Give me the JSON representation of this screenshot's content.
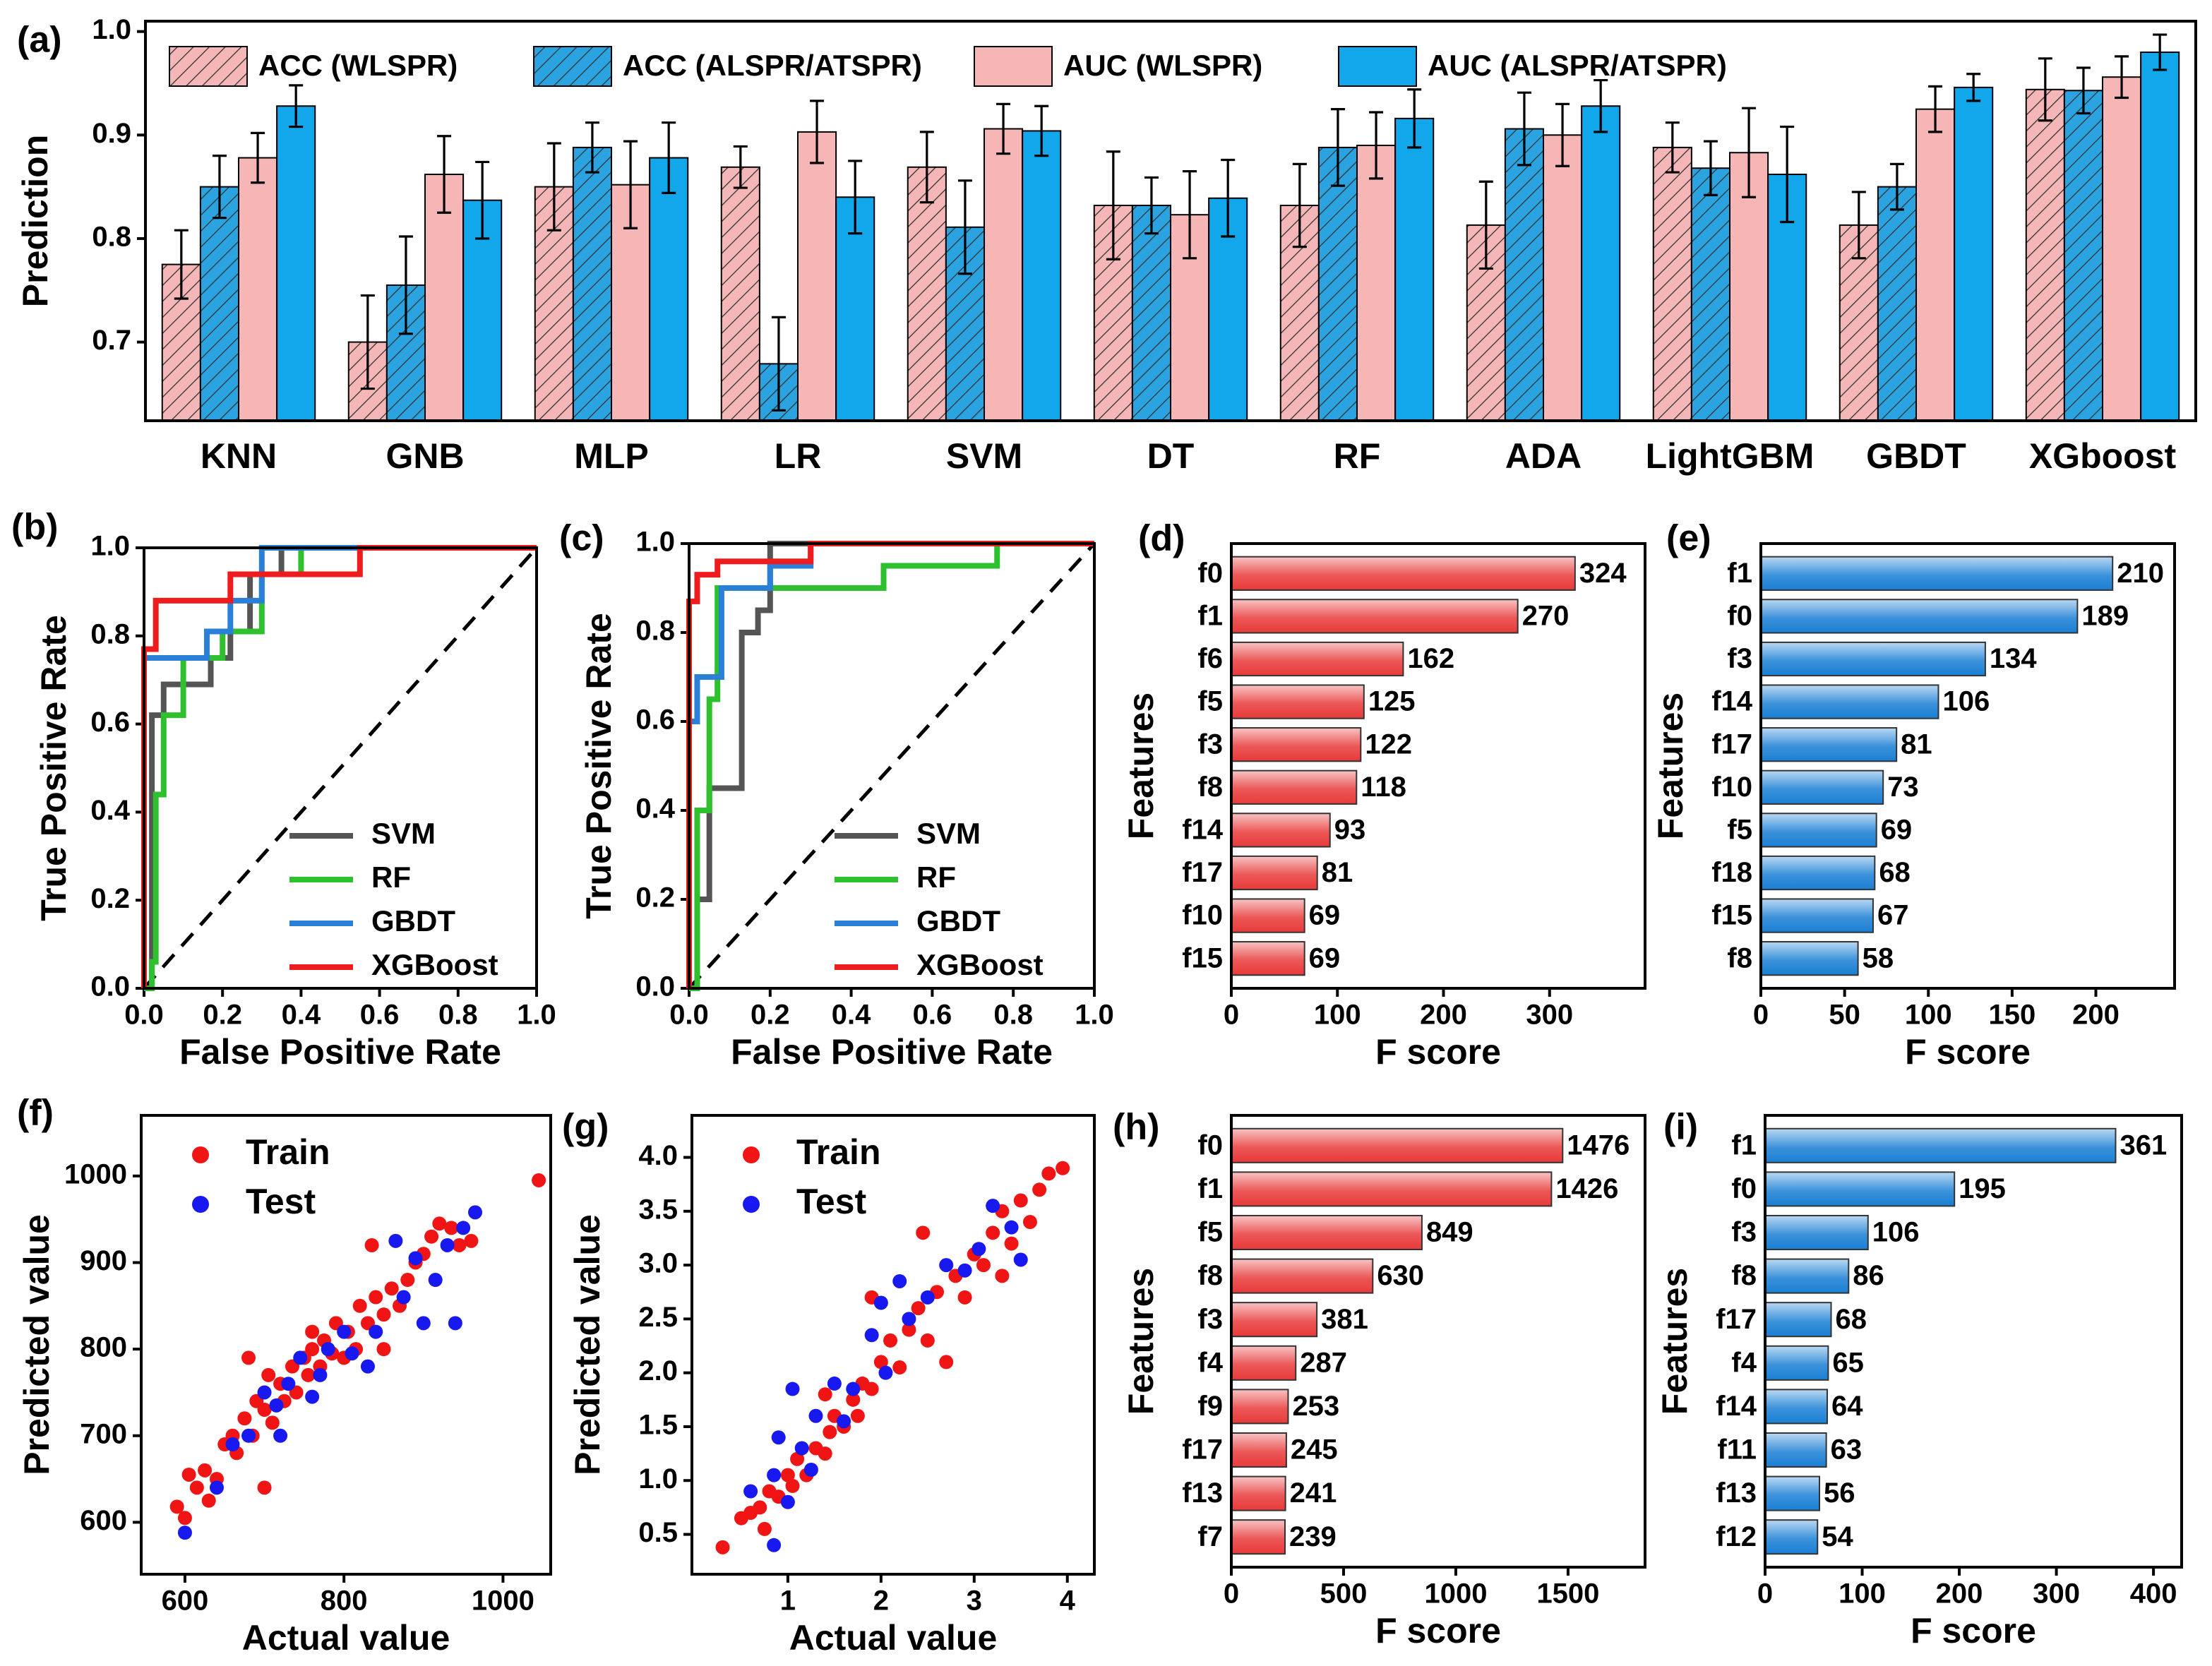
{
  "chart_data": [
    {
      "type": "bar",
      "label": "(a)",
      "ylabel": "Prediction",
      "categories": [
        "KNN",
        "GNB",
        "MLP",
        "LR",
        "SVM",
        "DT",
        "RF",
        "ADA",
        "LightGBM",
        "GBDT",
        "XGboost"
      ],
      "series": [
        {
          "name": "ACC (WLSPR)",
          "color": "#f4b6b6",
          "hatch": true,
          "values": [
            0.775,
            0.7,
            0.85,
            0.869,
            0.869,
            0.832,
            0.832,
            0.813,
            0.888,
            0.813,
            0.944
          ],
          "errors": [
            0.033,
            0.045,
            0.042,
            0.02,
            0.034,
            0.052,
            0.04,
            0.042,
            0.024,
            0.032,
            0.03
          ]
        },
        {
          "name": "ACC (ALSPR/ATSPR)",
          "color": "#2aa3e0",
          "hatch": true,
          "values": [
            0.85,
            0.755,
            0.888,
            0.679,
            0.811,
            0.832,
            0.888,
            0.906,
            0.868,
            0.85,
            0.943
          ],
          "errors": [
            0.03,
            0.047,
            0.024,
            0.045,
            0.045,
            0.027,
            0.037,
            0.035,
            0.026,
            0.022,
            0.022
          ]
        },
        {
          "name": "AUC (WLSPR)",
          "color": "#f7b6b6",
          "hatch": false,
          "values": [
            0.878,
            0.862,
            0.852,
            0.903,
            0.906,
            0.823,
            0.89,
            0.9,
            0.883,
            0.925,
            0.956
          ],
          "errors": [
            0.024,
            0.037,
            0.042,
            0.03,
            0.024,
            0.042,
            0.032,
            0.03,
            0.043,
            0.022,
            0.02
          ]
        },
        {
          "name": "AUC (ALSPR/ATSPR)",
          "color": "#12a6ea",
          "hatch": false,
          "values": [
            0.928,
            0.837,
            0.878,
            0.84,
            0.904,
            0.839,
            0.916,
            0.928,
            0.862,
            0.946,
            0.98
          ],
          "errors": [
            0.02,
            0.037,
            0.034,
            0.035,
            0.024,
            0.037,
            0.028,
            0.025,
            0.046,
            0.013,
            0.017
          ]
        }
      ],
      "ylim": [
        0.624,
        1.01
      ],
      "yticks": [
        0.7,
        0.8,
        0.9,
        {
          "value": 1,
          "label": "1.0"
        }
      ]
    },
    {
      "type": "line",
      "label": "(b)",
      "xlabel": "False Positive Rate",
      "ylabel": "True Positive Rate",
      "diagonal": true,
      "legend": "lower right",
      "xlim": [
        0,
        1
      ],
      "ylim": [
        0,
        1
      ],
      "xticks": [
        {
          "value": 0,
          "label": "0.0"
        },
        0.2,
        0.4,
        0.6,
        0.8,
        {
          "value": 1,
          "label": "1.0"
        }
      ],
      "yticks": [
        {
          "value": 0,
          "label": "0.0"
        },
        0.2,
        0.4,
        0.6,
        0.8,
        {
          "value": 1,
          "label": "1.0"
        }
      ],
      "series": [
        {
          "name": "SVM",
          "color": "#555555",
          "x": [
            0,
            0.02,
            0.02,
            0.05,
            0.05,
            0.17,
            0.17,
            0.22,
            0.22,
            0.27,
            0.27,
            0.35,
            0.35,
            1
          ],
          "values": [
            0,
            0,
            0.62,
            0.62,
            0.69,
            0.69,
            0.75,
            0.75,
            0.81,
            0.81,
            0.94,
            0.94,
            1,
            1
          ]
        },
        {
          "name": "RF",
          "color": "#2ec02e",
          "x": [
            0,
            0.02,
            0.02,
            0.03,
            0.03,
            0.05,
            0.05,
            0.1,
            0.1,
            0.2,
            0.2,
            0.3,
            0.3,
            0.4,
            0.4,
            1
          ],
          "values": [
            0,
            0,
            0.06,
            0.06,
            0.44,
            0.44,
            0.62,
            0.62,
            0.75,
            0.75,
            0.81,
            0.81,
            0.94,
            0.94,
            1,
            1
          ]
        },
        {
          "name": "GBDT",
          "color": "#2a7fd6",
          "x": [
            0,
            0,
            0.16,
            0.16,
            0.22,
            0.22,
            0.3,
            0.3,
            1
          ],
          "values": [
            0,
            0.75,
            0.75,
            0.81,
            0.81,
            0.88,
            0.88,
            1,
            1
          ]
        },
        {
          "name": "XGBoost",
          "color": "#ee1c1c",
          "x": [
            0,
            0,
            0.03,
            0.03,
            0.22,
            0.22,
            0.55,
            0.55,
            1
          ],
          "values": [
            0,
            0.77,
            0.77,
            0.88,
            0.88,
            0.94,
            0.94,
            1,
            1
          ]
        }
      ]
    },
    {
      "type": "line",
      "label": "(c)",
      "xlabel": "False Positive Rate",
      "ylabel": "True Positive Rate",
      "diagonal": true,
      "legend": "lower right",
      "xlim": [
        0,
        1
      ],
      "ylim": [
        0,
        1
      ],
      "xticks": [
        {
          "value": 0,
          "label": "0.0"
        },
        0.2,
        0.4,
        0.6,
        0.8,
        {
          "value": 1,
          "label": "1.0"
        }
      ],
      "yticks": [
        {
          "value": 0,
          "label": "0.0"
        },
        0.2,
        0.4,
        0.6,
        0.8,
        {
          "value": 1,
          "label": "1.0"
        }
      ],
      "series": [
        {
          "name": "SVM",
          "color": "#555555",
          "x": [
            0,
            0.02,
            0.02,
            0.05,
            0.05,
            0.13,
            0.13,
            0.17,
            0.17,
            0.2,
            0.2,
            1
          ],
          "values": [
            0,
            0,
            0.2,
            0.2,
            0.45,
            0.45,
            0.8,
            0.8,
            0.85,
            0.85,
            1,
            1
          ]
        },
        {
          "name": "RF",
          "color": "#2ec02e",
          "x": [
            0,
            0.02,
            0.02,
            0.05,
            0.05,
            0.07,
            0.07,
            0.48,
            0.48,
            0.76,
            0.76,
            1
          ],
          "values": [
            0,
            0,
            0.4,
            0.4,
            0.65,
            0.65,
            0.9,
            0.9,
            0.95,
            0.95,
            1,
            1
          ]
        },
        {
          "name": "GBDT",
          "color": "#2a7fd6",
          "x": [
            0,
            0.02,
            0.02,
            0.08,
            0.08,
            0.2,
            0.2,
            0.3,
            0.3,
            1
          ],
          "values": [
            0.6,
            0.6,
            0.7,
            0.7,
            0.9,
            0.9,
            0.95,
            0.95,
            1,
            1
          ]
        },
        {
          "name": "XGBoost",
          "color": "#ee1c1c",
          "x": [
            0,
            0,
            0.02,
            0.02,
            0.07,
            0.07,
            0.3,
            0.3,
            1
          ],
          "values": [
            0,
            0.87,
            0.87,
            0.93,
            0.93,
            0.96,
            0.96,
            1,
            1
          ]
        }
      ]
    },
    {
      "type": "hbar",
      "label": "(d)",
      "xlabel": "F score",
      "ylabel": "Features",
      "color": "#e83a3a",
      "categories": [
        "f0",
        "f1",
        "f6",
        "f5",
        "f3",
        "f8",
        "f14",
        "f17",
        "f10",
        "f15"
      ],
      "values": [
        324,
        270,
        162,
        125,
        122,
        118,
        93,
        81,
        69,
        69
      ],
      "xlim": [
        0,
        390
      ],
      "xticks": [
        0,
        100,
        200,
        300
      ]
    },
    {
      "type": "hbar",
      "label": "(e)",
      "xlabel": "F score",
      "ylabel": "Features",
      "color": "#1a7fd4",
      "categories": [
        "f1",
        "f0",
        "f3",
        "f14",
        "f17",
        "f10",
        "f5",
        "f18",
        "f15",
        "f8"
      ],
      "values": [
        210,
        189,
        134,
        106,
        81,
        73,
        69,
        68,
        67,
        58
      ],
      "xlim": [
        0,
        247
      ],
      "xticks": [
        0,
        50,
        100,
        150,
        200
      ]
    },
    {
      "type": "scatter",
      "label": "(f)",
      "xlabel": "Actual value",
      "ylabel": "Predicted value",
      "legend": "upper left",
      "xlim": [
        545,
        1060
      ],
      "ylim": [
        540,
        1070
      ],
      "xticks": [
        600,
        800,
        1000
      ],
      "yticks": [
        600,
        700,
        800,
        900,
        1000
      ],
      "series": [
        {
          "name": "Train",
          "color": "#f01414",
          "x": [
            590,
            600,
            605,
            615,
            625,
            630,
            640,
            650,
            660,
            665,
            675,
            680,
            685,
            690,
            700,
            705,
            710,
            720,
            725,
            735,
            740,
            750,
            755,
            760,
            770,
            775,
            785,
            790,
            800,
            805,
            815,
            820,
            830,
            835,
            840,
            850,
            860,
            870,
            880,
            890,
            900,
            910,
            920,
            935,
            945,
            960,
            1045,
            700,
            760,
            850
          ],
          "values": [
            618,
            605,
            655,
            640,
            660,
            625,
            650,
            690,
            700,
            680,
            720,
            790,
            700,
            740,
            730,
            770,
            715,
            760,
            740,
            780,
            750,
            790,
            770,
            800,
            780,
            810,
            795,
            830,
            790,
            820,
            800,
            850,
            830,
            920,
            860,
            840,
            870,
            850,
            880,
            900,
            910,
            930,
            945,
            940,
            920,
            925,
            995,
            640,
            820,
            800
          ]
        },
        {
          "name": "Test",
          "color": "#1818f0",
          "x": [
            600,
            640,
            660,
            680,
            700,
            715,
            730,
            745,
            760,
            780,
            800,
            830,
            840,
            865,
            875,
            890,
            900,
            915,
            930,
            940,
            950,
            965,
            720,
            770,
            810
          ],
          "values": [
            588,
            640,
            690,
            700,
            750,
            735,
            760,
            790,
            745,
            800,
            820,
            780,
            820,
            925,
            860,
            905,
            830,
            880,
            920,
            830,
            940,
            958,
            700,
            770,
            795
          ]
        }
      ]
    },
    {
      "type": "scatter",
      "label": "(g)",
      "xlabel": "Actual value",
      "ylabel": "Predicted value",
      "legend": "upper left",
      "xlim": [
        -0.03,
        4.29
      ],
      "ylim": [
        0.13,
        4.39
      ],
      "xticks": [
        1,
        2,
        3,
        4
      ],
      "yticks": [
        0.5,
        {
          "value": 1,
          "label": "1.0"
        },
        1.5,
        {
          "value": 2,
          "label": "2.0"
        },
        2.5,
        {
          "value": 3,
          "label": "3.0"
        },
        3.5,
        {
          "value": 4,
          "label": "4.0"
        }
      ],
      "series": [
        {
          "name": "Train",
          "color": "#f01414",
          "x": [
            0.3,
            0.5,
            0.6,
            0.7,
            0.75,
            0.8,
            0.9,
            1.0,
            1.05,
            1.1,
            1.2,
            1.3,
            1.4,
            1.45,
            1.5,
            1.6,
            1.7,
            1.75,
            1.8,
            1.9,
            2.0,
            2.1,
            2.2,
            2.3,
            2.4,
            2.5,
            2.6,
            2.7,
            2.8,
            2.9,
            3.0,
            3.1,
            3.2,
            3.3,
            3.4,
            3.5,
            3.6,
            3.7,
            3.8,
            3.95,
            2.45,
            1.4,
            3.3,
            1.9
          ],
          "values": [
            0.38,
            0.65,
            0.7,
            0.75,
            0.55,
            0.9,
            0.85,
            1.05,
            0.95,
            1.2,
            1.05,
            1.3,
            1.25,
            1.45,
            1.6,
            1.5,
            1.75,
            1.6,
            1.9,
            1.85,
            2.1,
            2.3,
            2.05,
            2.4,
            2.6,
            2.3,
            2.75,
            2.1,
            2.9,
            2.7,
            3.1,
            3.0,
            3.3,
            3.5,
            3.2,
            3.6,
            3.4,
            3.7,
            3.85,
            3.9,
            3.3,
            1.8,
            2.9,
            2.7
          ]
        },
        {
          "name": "Test",
          "color": "#1818f0",
          "x": [
            0.85,
            0.85,
            0.9,
            1.0,
            1.05,
            1.15,
            1.3,
            1.5,
            1.6,
            1.7,
            1.9,
            2.0,
            2.05,
            2.2,
            2.3,
            2.5,
            2.7,
            2.9,
            3.05,
            3.2,
            3.4,
            3.5,
            0.6,
            1.25
          ],
          "values": [
            0.4,
            1.05,
            1.4,
            0.8,
            1.85,
            1.3,
            1.6,
            1.9,
            1.55,
            1.85,
            2.35,
            2.65,
            2.0,
            2.85,
            2.5,
            2.7,
            3.0,
            2.95,
            3.15,
            3.55,
            3.35,
            3.05,
            0.9,
            1.1
          ]
        }
      ]
    },
    {
      "type": "hbar",
      "label": "(h)",
      "xlabel": "F score",
      "ylabel": "Features",
      "color": "#e83a3a",
      "categories": [
        "f0",
        "f1",
        "f5",
        "f8",
        "f3",
        "f4",
        "f9",
        "f17",
        "f13",
        "f7"
      ],
      "values": [
        1476,
        1426,
        849,
        630,
        381,
        287,
        253,
        245,
        241,
        239
      ],
      "xlim": [
        0,
        1843
      ],
      "xticks": [
        0,
        500,
        1000,
        1500
      ]
    },
    {
      "type": "hbar",
      "label": "(i)",
      "xlabel": "F score",
      "ylabel": "Features",
      "color": "#1a7fd4",
      "categories": [
        "f1",
        "f0",
        "f3",
        "f8",
        "f17",
        "f4",
        "f14",
        "f11",
        "f13",
        "f12"
      ],
      "values": [
        361,
        195,
        106,
        86,
        68,
        65,
        64,
        63,
        56,
        54
      ],
      "xlim": [
        0,
        429
      ],
      "xticks": [
        0,
        100,
        200,
        300,
        400
      ]
    }
  ]
}
